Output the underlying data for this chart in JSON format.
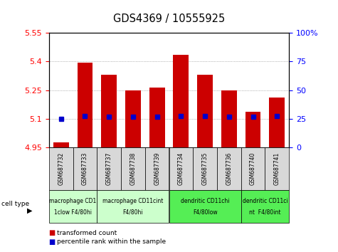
{
  "title": "GDS4369 / 10555925",
  "samples": [
    "GSM687732",
    "GSM687733",
    "GSM687737",
    "GSM687738",
    "GSM687739",
    "GSM687734",
    "GSM687735",
    "GSM687736",
    "GSM687740",
    "GSM687741"
  ],
  "transformed_count": [
    4.975,
    5.395,
    5.33,
    5.25,
    5.265,
    5.435,
    5.33,
    5.25,
    5.135,
    5.21
  ],
  "percentile_rank_y": [
    5.1,
    5.115,
    5.11,
    5.11,
    5.11,
    5.115,
    5.115,
    5.11,
    5.11,
    5.115
  ],
  "ylim_left": [
    4.95,
    5.55
  ],
  "ylim_right": [
    0,
    100
  ],
  "yticks_left": [
    4.95,
    5.1,
    5.25,
    5.4,
    5.55
  ],
  "yticks_right": [
    0,
    25,
    50,
    75,
    100
  ],
  "ytick_right_labels": [
    "0",
    "25",
    "50",
    "75",
    "100%"
  ],
  "bar_color": "#cc0000",
  "dot_color": "#0000cc",
  "group_borders": [
    {
      "start": 0,
      "end": 2,
      "color": "#ccffcc",
      "line1": "macrophage CD1",
      "line2": "1clow F4/80hi"
    },
    {
      "start": 2,
      "end": 5,
      "color": "#ccffcc",
      "line1": "macrophage CD11cint",
      "line2": "F4/80hi"
    },
    {
      "start": 5,
      "end": 8,
      "color": "#55ee55",
      "line1": "dendritic CD11chi",
      "line2": "F4/80low"
    },
    {
      "start": 8,
      "end": 10,
      "color": "#55ee55",
      "line1": "dendritic CD11ci",
      "line2": "nt  F4/80int"
    }
  ],
  "legend_red": "transformed count",
  "legend_blue": "percentile rank within the sample",
  "cell_type_label": "cell type",
  "sample_box_color": "#d8d8d8"
}
